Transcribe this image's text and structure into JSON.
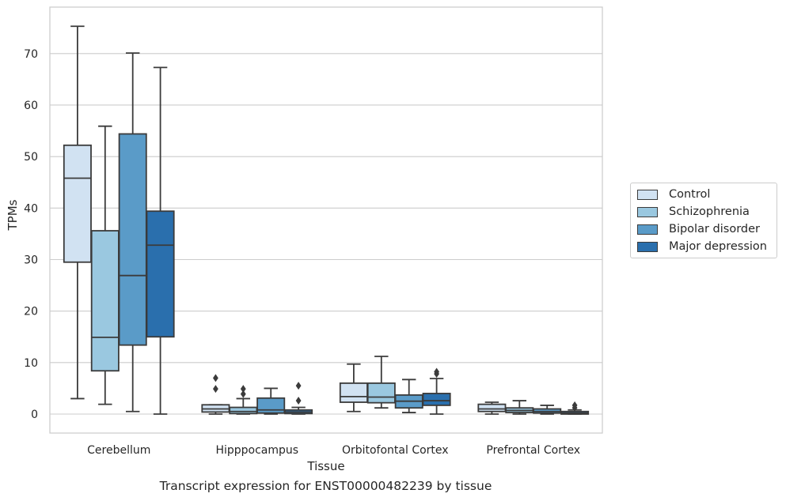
{
  "chart_data": {
    "type": "box",
    "xlabel": "Tissue",
    "ylabel": "TPMs",
    "ylim": [
      -3.5,
      79
    ],
    "yticks": [
      0,
      10,
      20,
      30,
      40,
      50,
      60,
      70
    ],
    "categories": [
      "Cerebellum",
      "Hipppocampus",
      "Orbitofontal Cortex",
      "Prefrontal Cortex"
    ],
    "grid": "horizontal",
    "legend_position": "right",
    "series": [
      {
        "name": "Control",
        "color": "#d1e2f2",
        "boxes": [
          {
            "whislo": 3.0,
            "q1": 29.5,
            "med": 45.8,
            "q3": 52.2,
            "whishi": 75.3,
            "fliers": []
          },
          {
            "whislo": 0.0,
            "q1": 0.4,
            "med": 1.0,
            "q3": 1.8,
            "whishi": 1.8,
            "fliers": [
              7.0,
              4.9
            ]
          },
          {
            "whislo": 0.5,
            "q1": 2.3,
            "med": 3.4,
            "q3": 6.0,
            "whishi": 9.7,
            "fliers": []
          },
          {
            "whislo": 0.0,
            "q1": 0.5,
            "med": 1.0,
            "q3": 1.9,
            "whishi": 2.3,
            "fliers": []
          }
        ]
      },
      {
        "name": "Schizophrenia",
        "color": "#9ac8e0",
        "boxes": [
          {
            "whislo": 1.9,
            "q1": 8.4,
            "med": 14.9,
            "q3": 35.6,
            "whishi": 55.9,
            "fliers": []
          },
          {
            "whislo": 0.0,
            "q1": 0.1,
            "med": 0.5,
            "q3": 1.3,
            "whishi": 3.0,
            "fliers": [
              4.9,
              3.9
            ]
          },
          {
            "whislo": 1.2,
            "q1": 2.2,
            "med": 3.3,
            "q3": 6.0,
            "whishi": 11.2,
            "fliers": []
          },
          {
            "whislo": 0.0,
            "q1": 0.3,
            "med": 0.7,
            "q3": 1.2,
            "whishi": 2.6,
            "fliers": []
          }
        ]
      },
      {
        "name": "Bipolar disorder",
        "color": "#5a9bc8",
        "boxes": [
          {
            "whislo": 0.5,
            "q1": 13.4,
            "med": 26.9,
            "q3": 54.4,
            "whishi": 70.1,
            "fliers": []
          },
          {
            "whislo": 0.0,
            "q1": 0.2,
            "med": 0.8,
            "q3": 3.1,
            "whishi": 5.0,
            "fliers": []
          },
          {
            "whislo": 0.3,
            "q1": 1.2,
            "med": 2.5,
            "q3": 3.7,
            "whishi": 6.7,
            "fliers": []
          },
          {
            "whislo": 0.0,
            "q1": 0.2,
            "med": 0.5,
            "q3": 1.0,
            "whishi": 1.7,
            "fliers": []
          }
        ]
      },
      {
        "name": "Major depression",
        "color": "#2a6fad",
        "boxes": [
          {
            "whislo": 0.0,
            "q1": 15.0,
            "med": 32.8,
            "q3": 39.4,
            "whishi": 67.3,
            "fliers": []
          },
          {
            "whislo": 0.0,
            "q1": 0.1,
            "med": 0.4,
            "q3": 0.8,
            "whishi": 1.3,
            "fliers": [
              5.5,
              2.6
            ]
          },
          {
            "whislo": 0.0,
            "q1": 1.7,
            "med": 2.6,
            "q3": 4.0,
            "whishi": 6.9,
            "fliers": [
              8.2,
              7.8
            ]
          },
          {
            "whislo": 0.0,
            "q1": 0.0,
            "med": 0.2,
            "q3": 0.5,
            "whishi": 0.8,
            "fliers": [
              1.7,
              1.2
            ]
          }
        ]
      }
    ]
  },
  "caption": "Transcript expression for ENST00000482239 by tissue"
}
